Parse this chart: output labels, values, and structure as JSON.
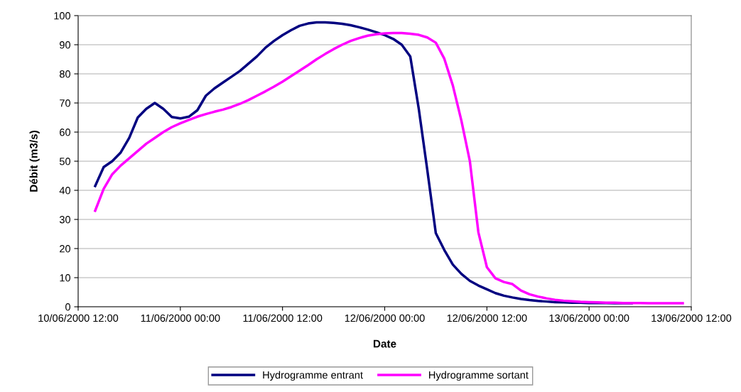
{
  "chart_data": {
    "type": "line",
    "xlabel": "Date",
    "ylabel": "Débit (m3/s)",
    "xlim": [
      "2000-06-10T12:00",
      "2000-06-13T12:00"
    ],
    "xticks": [
      {
        "value": "2000-06-10T12:00",
        "label": "10/06/2000 12:00"
      },
      {
        "value": "2000-06-11T00:00",
        "label": "11/06/2000 00:00"
      },
      {
        "value": "2000-06-11T12:00",
        "label": "11/06/2000 12:00"
      },
      {
        "value": "2000-06-12T00:00",
        "label": "12/06/2000 00:00"
      },
      {
        "value": "2000-06-12T12:00",
        "label": "12/06/2000 12:00"
      },
      {
        "value": "2000-06-13T00:00",
        "label": "13/06/2000 00:00"
      },
      {
        "value": "2000-06-13T12:00",
        "label": "13/06/2000 12:00"
      }
    ],
    "ylim": [
      0,
      100
    ],
    "yticks": [
      0,
      10,
      20,
      30,
      40,
      50,
      60,
      70,
      80,
      90,
      100
    ],
    "grid": "y",
    "legend": "bottom",
    "marker": "none",
    "line_style": "solid",
    "x": [
      "2000-06-10T14:00",
      "2000-06-10T15:00",
      "2000-06-10T16:00",
      "2000-06-10T17:00",
      "2000-06-10T18:00",
      "2000-06-10T19:00",
      "2000-06-10T20:00",
      "2000-06-10T21:00",
      "2000-06-10T22:00",
      "2000-06-10T23:00",
      "2000-06-11T00:00",
      "2000-06-11T01:00",
      "2000-06-11T02:00",
      "2000-06-11T03:00",
      "2000-06-11T04:00",
      "2000-06-11T05:00",
      "2000-06-11T06:00",
      "2000-06-11T07:00",
      "2000-06-11T08:00",
      "2000-06-11T09:00",
      "2000-06-11T10:00",
      "2000-06-11T11:00",
      "2000-06-11T12:00",
      "2000-06-11T13:00",
      "2000-06-11T14:00",
      "2000-06-11T15:00",
      "2000-06-11T16:00",
      "2000-06-11T17:00",
      "2000-06-11T18:00",
      "2000-06-11T19:00",
      "2000-06-11T20:00",
      "2000-06-11T21:00",
      "2000-06-11T22:00",
      "2000-06-11T23:00",
      "2000-06-12T00:00",
      "2000-06-12T01:00",
      "2000-06-12T02:00",
      "2000-06-12T03:00",
      "2000-06-12T04:00",
      "2000-06-12T05:00",
      "2000-06-12T06:00",
      "2000-06-12T07:00",
      "2000-06-12T08:00",
      "2000-06-12T09:00",
      "2000-06-12T10:00",
      "2000-06-12T11:00",
      "2000-06-12T12:00",
      "2000-06-12T13:00",
      "2000-06-12T14:00",
      "2000-06-12T15:00",
      "2000-06-12T16:00",
      "2000-06-12T17:00",
      "2000-06-12T18:00",
      "2000-06-12T19:00",
      "2000-06-12T20:00",
      "2000-06-12T21:00",
      "2000-06-12T22:00",
      "2000-06-12T23:00",
      "2000-06-13T00:00",
      "2000-06-13T01:00",
      "2000-06-13T02:00",
      "2000-06-13T03:00",
      "2000-06-13T04:00",
      "2000-06-13T05:00",
      "2000-06-13T06:00",
      "2000-06-13T07:00",
      "2000-06-13T08:00",
      "2000-06-13T09:00",
      "2000-06-13T10:00",
      "2000-06-13T11:00"
    ],
    "series": [
      {
        "name": "Hydrogramme entrant",
        "color": "#000080",
        "values": [
          41.5,
          48,
          50,
          53,
          58,
          65,
          68,
          70,
          68,
          65.2,
          64.7,
          65.3,
          67.5,
          72.5,
          75,
          77,
          79,
          81,
          83.5,
          86,
          89,
          91.3,
          93.3,
          95,
          96.5,
          97.3,
          97.7,
          97.7,
          97.5,
          97.2,
          96.7,
          96,
          95.2,
          94.3,
          93.3,
          92,
          90,
          86,
          68,
          47,
          25.3,
          19.5,
          14.5,
          11.3,
          8.9,
          7.3,
          6,
          4.7,
          3.8,
          3.2,
          2.7,
          2.3,
          2,
          1.8,
          1.6,
          1.5,
          1.4,
          1.4,
          1.3,
          1.3,
          1.3,
          1.2,
          1.2,
          1.2,
          null,
          null,
          null,
          null,
          null,
          null
        ]
      },
      {
        "name": "Hydrogramme sortant",
        "color": "#ff00ff",
        "values": [
          33,
          40.5,
          45.5,
          48.5,
          51,
          53.5,
          56,
          58,
          60,
          61.7,
          63,
          64.2,
          65.3,
          66.2,
          67,
          67.7,
          68.6,
          69.7,
          71,
          72.5,
          74,
          75.6,
          77.3,
          79.2,
          81.1,
          83,
          85,
          86.8,
          88.5,
          90,
          91.3,
          92.3,
          93.1,
          93.6,
          93.9,
          94,
          94,
          93.8,
          93.4,
          92.5,
          90.7,
          85.2,
          76,
          64,
          50,
          25.6,
          13.6,
          9.8,
          8.5,
          7.8,
          5.6,
          4.3,
          3.5,
          2.9,
          2.4,
          2.1,
          1.9,
          1.7,
          1.6,
          1.5,
          1.4,
          1.4,
          1.3,
          1.3,
          1.3,
          1.2,
          1.2,
          1.2,
          1.2,
          1.2
        ]
      }
    ]
  }
}
